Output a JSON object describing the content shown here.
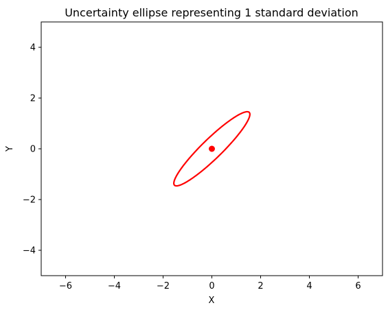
{
  "chart_data": {
    "type": "scatter",
    "title": "Uncertainty ellipse representing 1 standard deviation",
    "xlabel": "X",
    "ylabel": "Y",
    "xlim": [
      -7,
      7
    ],
    "ylim": [
      -5,
      5
    ],
    "xticks": [
      -6,
      -4,
      -2,
      0,
      2,
      4,
      6
    ],
    "yticks": [
      -4,
      -2,
      0,
      2,
      4
    ],
    "xtick_labels": [
      "−6",
      "−4",
      "−2",
      "0",
      "2",
      "4",
      "6"
    ],
    "ytick_labels": [
      "−4",
      "−2",
      "0",
      "2",
      "4"
    ],
    "grid": false,
    "points": [
      {
        "x": 0,
        "y": 0
      }
    ],
    "ellipse": {
      "center": [
        0,
        0
      ],
      "semi_major": 2.1,
      "semi_minor": 0.4,
      "angle_deg": 43
    },
    "color": "#ff0000"
  }
}
